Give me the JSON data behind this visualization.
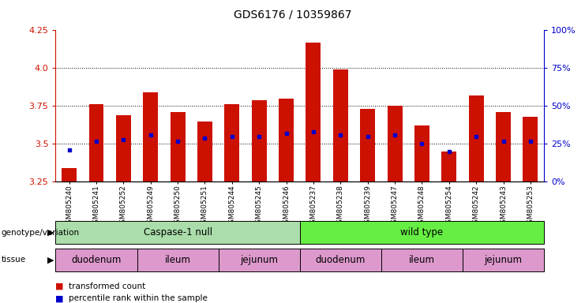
{
  "title": "GDS6176 / 10359867",
  "samples": [
    "GSM805240",
    "GSM805241",
    "GSM805252",
    "GSM805249",
    "GSM805250",
    "GSM805251",
    "GSM805244",
    "GSM805245",
    "GSM805246",
    "GSM805237",
    "GSM805238",
    "GSM805239",
    "GSM805247",
    "GSM805248",
    "GSM805254",
    "GSM805242",
    "GSM805243",
    "GSM805253"
  ],
  "red_values": [
    3.34,
    3.76,
    3.69,
    3.84,
    3.71,
    3.65,
    3.76,
    3.79,
    3.8,
    4.17,
    3.99,
    3.73,
    3.75,
    3.62,
    3.45,
    3.82,
    3.71,
    3.68
  ],
  "blue_values": [
    3.46,
    3.52,
    3.53,
    3.56,
    3.52,
    3.54,
    3.55,
    3.55,
    3.57,
    3.58,
    3.56,
    3.55,
    3.56,
    3.5,
    3.45,
    3.55,
    3.52,
    3.52
  ],
  "ylim_left": [
    3.25,
    4.25
  ],
  "ylim_right": [
    0,
    100
  ],
  "yticks_left": [
    3.25,
    3.5,
    3.75,
    4.0,
    4.25
  ],
  "yticks_right": [
    0,
    25,
    50,
    75,
    100
  ],
  "bar_color": "#cc1100",
  "blue_color": "#0000cc",
  "genotype_groups": [
    {
      "label": "Caspase-1 null",
      "start": 0,
      "end": 9,
      "color": "#aaddaa"
    },
    {
      "label": "wild type",
      "start": 9,
      "end": 18,
      "color": "#66ee44"
    }
  ],
  "tissue_groups": [
    {
      "label": "duodenum",
      "start": 0,
      "end": 3,
      "color": "#dd99cc"
    },
    {
      "label": "ileum",
      "start": 3,
      "end": 6,
      "color": "#dd99cc"
    },
    {
      "label": "jejunum",
      "start": 6,
      "end": 9,
      "color": "#dd99cc"
    },
    {
      "label": "duodenum",
      "start": 9,
      "end": 12,
      "color": "#dd99cc"
    },
    {
      "label": "ileum",
      "start": 12,
      "end": 15,
      "color": "#dd99cc"
    },
    {
      "label": "jejunum",
      "start": 15,
      "end": 18,
      "color": "#dd99cc"
    }
  ]
}
